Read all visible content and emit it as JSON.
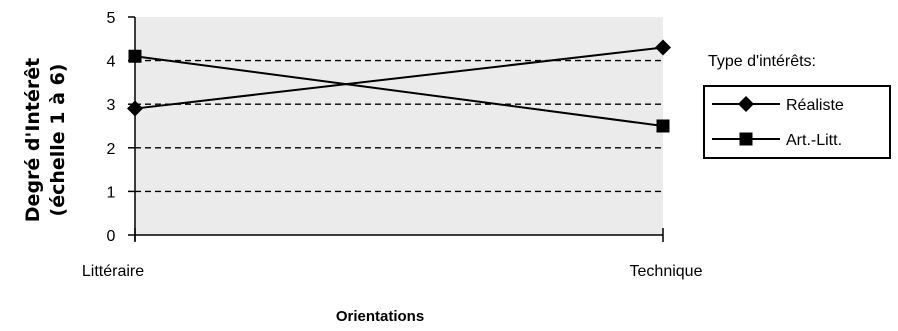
{
  "chart_data": {
    "type": "line",
    "categories": [
      "Littéraire",
      "Technique"
    ],
    "series": [
      {
        "name": "Réaliste",
        "values": [
          2.9,
          4.3
        ],
        "marker": "diamond"
      },
      {
        "name": "Art.-Litt.",
        "values": [
          4.1,
          2.5
        ],
        "marker": "square"
      }
    ],
    "xlabel": "Orientations",
    "ylabel_line1": "Degré d'Intérêt",
    "ylabel_line2": "(échelle 1 à 6)",
    "ylim": [
      0,
      5
    ],
    "yticks": [
      "0",
      "1",
      "2",
      "3",
      "4",
      "5"
    ],
    "grid": "dashed horizontal",
    "legend": {
      "title": "Type d'intérêts:",
      "position": "right"
    },
    "colors": {
      "plot_background": "#ebebeb",
      "lines": "#000000"
    }
  }
}
